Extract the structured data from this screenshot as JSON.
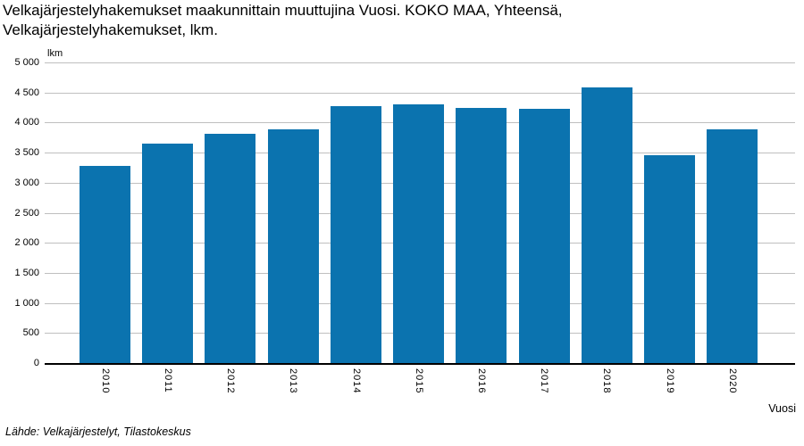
{
  "title": {
    "line1": "Velkajärjestelyhakemukset maakunnittain muuttujina Vuosi. KOKO MAA, Yhteensä,",
    "line2": "Velkajärjestelyhakemukset, lkm."
  },
  "axes": {
    "y_unit": "lkm",
    "x_label": "Vuosi",
    "yticks": [
      {
        "label": "5 000",
        "value": 5000
      },
      {
        "label": "4 500",
        "value": 4500
      },
      {
        "label": "4 000",
        "value": 4000
      },
      {
        "label": "3 500",
        "value": 3500
      },
      {
        "label": "3 000",
        "value": 3000
      },
      {
        "label": "2 500",
        "value": 2500
      },
      {
        "label": "2 000",
        "value": 2000
      },
      {
        "label": "1 500",
        "value": 1500
      },
      {
        "label": "1 000",
        "value": 1000
      },
      {
        "label": "500",
        "value": 500
      },
      {
        "label": "0",
        "value": 0
      }
    ]
  },
  "source": "Lähde: Velkajärjestelyt, Tilastokeskus",
  "colors": {
    "bar": "#0b73af",
    "gridline": "#bfbfbf",
    "axis": "#000000",
    "text": "#000000"
  },
  "chart_data": {
    "type": "bar",
    "categories": [
      "2010",
      "2011",
      "2012",
      "2013",
      "2014",
      "2015",
      "2016",
      "2017",
      "2018",
      "2019",
      "2020"
    ],
    "values": [
      3280,
      3650,
      3810,
      3890,
      4280,
      4300,
      4240,
      4230,
      4580,
      3450,
      3890
    ],
    "title": "Velkajärjestelyhakemukset maakunnittain muuttujina Vuosi. KOKO MAA, Yhteensä, Velkajärjestelyhakemukset, lkm.",
    "xlabel": "Vuosi",
    "ylabel": "lkm",
    "ylim": [
      0,
      5000
    ],
    "ytick_interval": 500,
    "grid": true,
    "legend": "none"
  }
}
